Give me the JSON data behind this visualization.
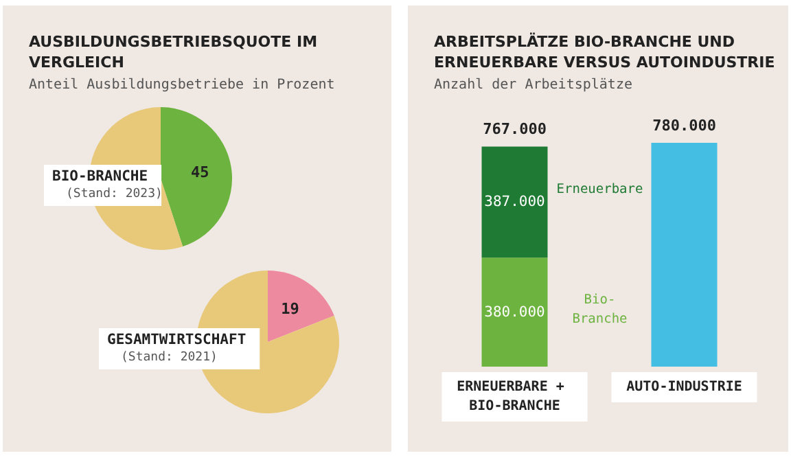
{
  "chart_data": [
    {
      "type": "pie",
      "title": "AUSBILDUNGSBETRIEBSQUOTE IM VERGLEICH",
      "subtitle": "Anteil Ausbildungsbetriebe in Prozent",
      "categories": [
        null,
        null
      ],
      "series": [
        {
          "name": "BIO-BRANCHE",
          "values": [
            45,
            55
          ],
          "colors": [
            "#6db33f",
            "#e8c97a"
          ],
          "value_labels": [
            "45",
            null
          ]
        },
        {
          "name": "GESAMTWIRTSCHAFT",
          "values": [
            19,
            81
          ],
          "colors": [
            "#ee8aa0",
            "#e8c97a"
          ],
          "value_labels": [
            "19",
            null
          ]
        }
      ],
      "annotations": [
        "(Stand: 2023)",
        "(Stand: 2021)"
      ],
      "legend": false
    },
    {
      "type": "bar",
      "stacked": true,
      "title": "ARBEITSPLÄTZE BIO-BRANCHE UND ERNEUERBARE VERSUS AUTOINDUSTRIE",
      "subtitle": "Anzahl der Arbeitsplätze",
      "categories": [
        "ERNEUERBARE + BIO-BRANCHE",
        "AUTO-INDUSTRIE"
      ],
      "series": [
        {
          "name": "Bio-Branche",
          "color": "#6db33f",
          "values": [
            380000,
            null
          ],
          "value_labels": [
            "380.000",
            null
          ]
        },
        {
          "name": "Erneuerbare",
          "color": "#1f7a34",
          "values": [
            387000,
            null
          ],
          "value_labels": [
            "387.000",
            null
          ]
        },
        {
          "color": "#45bee3",
          "values": [
            null,
            780000
          ],
          "value_labels": [
            null,
            null
          ]
        }
      ],
      "totals": [
        "767.000",
        "780.000"
      ],
      "legend": false
    }
  ]
}
